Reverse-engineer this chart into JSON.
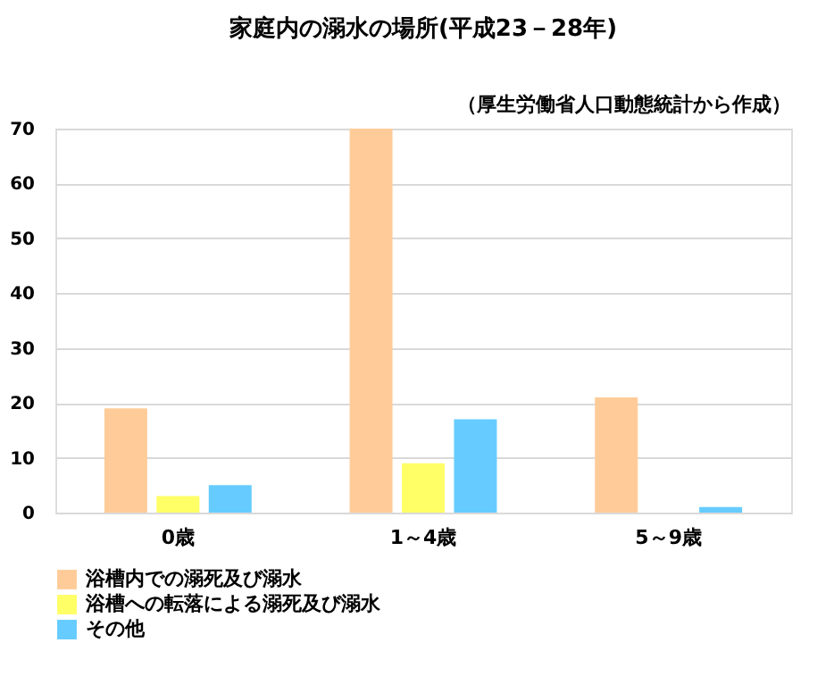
{
  "chart_data": {
    "type": "bar",
    "title": "家庭内の溺水の場所(平成23－28年)",
    "annotations": [
      "（厚生労働省人口動態統計から作成）"
    ],
    "categories": [
      "0歳",
      "1～4歳",
      "5～9歳"
    ],
    "series": [
      {
        "name": "浴槽内での溺死及び溺水",
        "color": "#ffcc99",
        "values": [
          19,
          70,
          21
        ]
      },
      {
        "name": "浴槽への転落による溺死及び溺水",
        "color": "#ffff66",
        "values": [
          3,
          9,
          0
        ]
      },
      {
        "name": "その他",
        "color": "#66ccff",
        "values": [
          5,
          17,
          1
        ]
      }
    ],
    "ylim": [
      0,
      70
    ],
    "yticks": [
      0,
      10,
      20,
      30,
      40,
      50,
      60,
      70
    ],
    "grid": "y",
    "legend": "bottom"
  }
}
